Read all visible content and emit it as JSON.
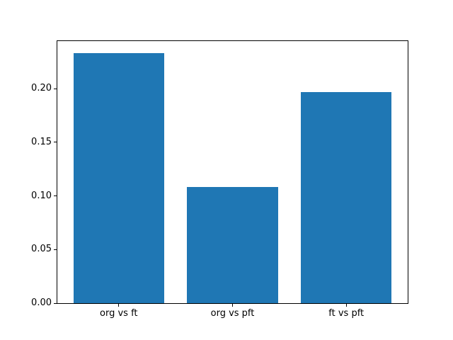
{
  "figure": {
    "background_color": "#ffffff"
  },
  "chart_data": {
    "type": "bar",
    "title": "",
    "xlabel": "",
    "ylabel": "",
    "categories": [
      "org vs ft",
      "org vs pft",
      "ft vs pft"
    ],
    "values": [
      0.233,
      0.108,
      0.197
    ],
    "bar_color": "#1f77b4",
    "bar_width_fraction": 0.8,
    "x_margin_fraction": 0.05,
    "ylim": [
      0,
      0.2443
    ],
    "yticks": [
      0.0,
      0.05,
      0.1,
      0.15,
      0.2
    ],
    "ytick_labels": [
      "0.00",
      "0.05",
      "0.10",
      "0.15",
      "0.20"
    ],
    "grid": false,
    "legend": null,
    "axis_color": "#000000",
    "tick_label_color": "#000000"
  }
}
